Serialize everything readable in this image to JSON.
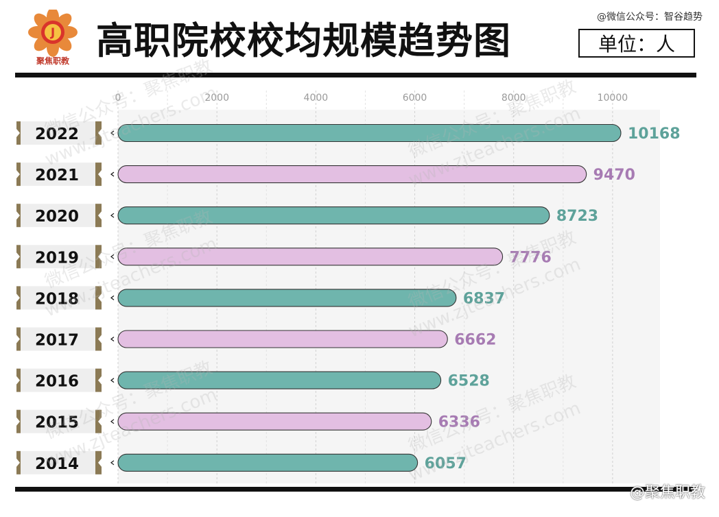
{
  "header": {
    "title": "高职院校校均规模趋势图",
    "unit_label": "单位：人",
    "logo_text": "聚焦职教",
    "logo_letter": "J",
    "top_note": "@微信公众号：智谷趋势",
    "bottom_note": "@聚焦职教"
  },
  "watermark": {
    "lines": [
      "微信公众号：聚焦职教",
      "www.zjteachers.com"
    ]
  },
  "colors": {
    "teal": "#6fb5ad",
    "pink": "#e3bfe2",
    "teal_text": "#5ea29a",
    "pink_text": "#a77bb3",
    "label_tab": "#8b7a55"
  },
  "chart_data": {
    "type": "bar",
    "orientation": "horizontal",
    "categories": [
      "2022",
      "2021",
      "2020",
      "2019",
      "2018",
      "2017",
      "2016",
      "2015",
      "2014"
    ],
    "values": [
      10168,
      9470,
      8723,
      7776,
      6837,
      6662,
      6528,
      6336,
      6057
    ],
    "value_labels": [
      "10168",
      "9470",
      "8723",
      "7776",
      "6837",
      "6662",
      "6528",
      "6336",
      "6057"
    ],
    "bar_colors": [
      "teal",
      "pink",
      "teal",
      "pink",
      "teal",
      "pink",
      "teal",
      "pink",
      "teal"
    ],
    "xlim": [
      0,
      10500
    ],
    "x_ticks": [
      0,
      2000,
      4000,
      6000,
      8000,
      10000
    ],
    "x_tick_labels": [
      "0",
      "2000",
      "4000",
      "6000",
      "8000",
      "10000"
    ],
    "grid": true,
    "title": "高职院校校均规模趋势图",
    "unit": "单位：人"
  }
}
